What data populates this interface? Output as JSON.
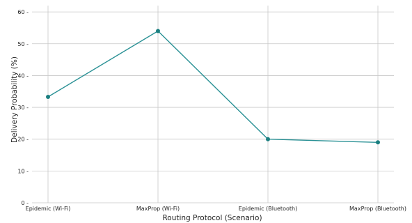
{
  "chart_data": {
    "type": "line",
    "title": "",
    "xlabel": "Routing Protocol (Scenario)",
    "ylabel": "Delivery Probability (%)",
    "categories": [
      "Epidemic (Wi-Fi)",
      "MaxProp (Wi-Fi)",
      "Epidemic (Bluetooth)",
      "MaxProp (Bluetooth)"
    ],
    "series": [
      {
        "values": [
          33.3,
          54.0,
          20.0,
          19.0
        ],
        "color": "#2a9195"
      }
    ],
    "ylim": [
      0,
      62
    ],
    "yticks": [
      0,
      10,
      20,
      30,
      40,
      50,
      60
    ],
    "grid": true,
    "legend": "none"
  }
}
